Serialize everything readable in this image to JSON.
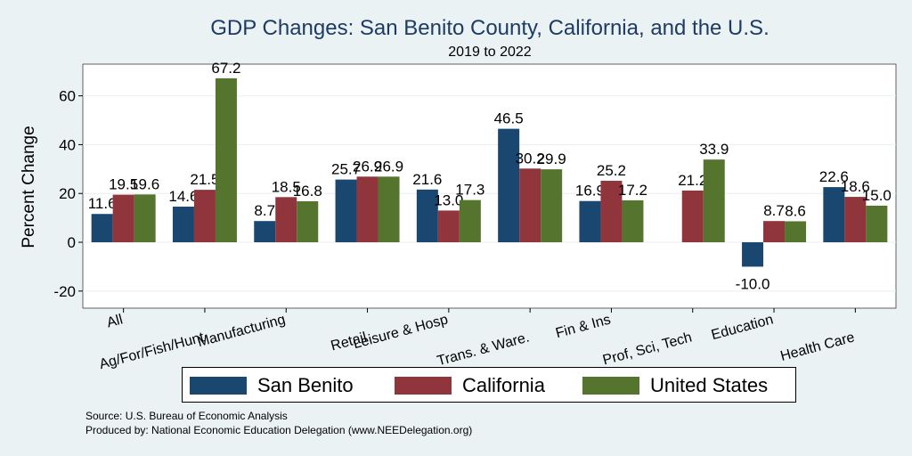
{
  "chart_data": {
    "type": "bar",
    "title": "GDP Changes: San Benito County, California, and the U.S.",
    "subtitle": "2019 to 2022",
    "xlabel": "",
    "ylabel": "Percent Change",
    "ylim": [
      -27,
      73
    ],
    "yticks": [
      -20,
      0,
      20,
      40,
      60
    ],
    "ytick_labels": [
      "-20",
      "0",
      "20",
      "40",
      "60"
    ],
    "categories": [
      "All",
      "Ag/For/Fish/Hunt",
      "Manufacturing",
      "Retail",
      "Leisure & Hosp",
      "Trans. & Ware.",
      "Fin & Ins",
      "Prof, Sci, Tech",
      "Education",
      "Health Care"
    ],
    "series": [
      {
        "name": "San Benito",
        "color": "#1a476f",
        "values": [
          11.6,
          14.6,
          8.7,
          25.7,
          21.6,
          46.5,
          16.9,
          null,
          -10.0,
          22.6
        ],
        "labels": [
          "11.6",
          "14.6",
          "8.7",
          "25.7",
          "21.6",
          "46.5",
          "16.9",
          null,
          "-10.0",
          "22.6"
        ]
      },
      {
        "name": "California",
        "color": "#90353b",
        "values": [
          19.5,
          21.5,
          18.5,
          26.9,
          13.0,
          30.2,
          25.2,
          21.2,
          8.7,
          18.6
        ],
        "labels": [
          "19.5",
          "21.5",
          "18.5",
          "26.9",
          "13.0",
          "30.2",
          "25.2",
          "21.2",
          "8.7",
          "18.6"
        ]
      },
      {
        "name": "United States",
        "color": "#55752f",
        "values": [
          19.6,
          67.2,
          16.8,
          26.9,
          17.3,
          29.9,
          17.2,
          33.9,
          8.6,
          15.0
        ],
        "labels": [
          "19.6",
          "67.2",
          "16.8",
          "26.9",
          "17.3",
          "29.9",
          "17.2",
          "33.9",
          "8.6",
          "15.0"
        ]
      }
    ],
    "grid": true,
    "legend_position": "bottom"
  },
  "footer": {
    "source": "Source: U.S. Bureau of Economic Analysis",
    "produced_by": "Produced by: National Economic Education Delegation (www.NEEDelegation.org)"
  }
}
